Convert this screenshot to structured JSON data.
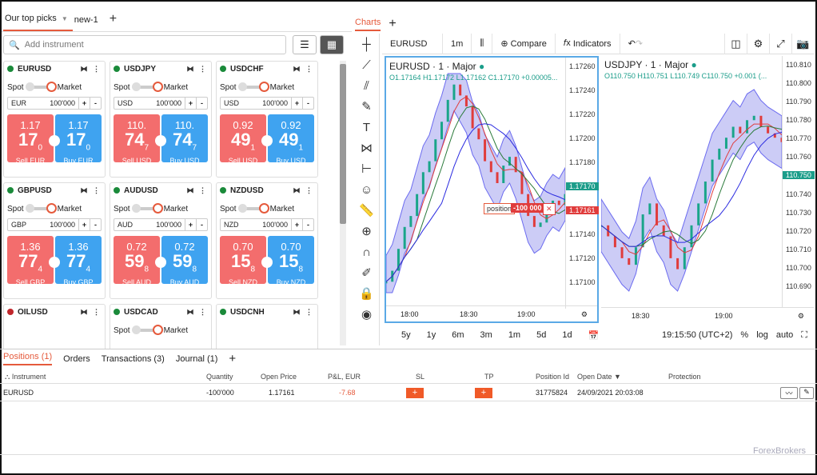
{
  "top_tabs": [
    {
      "label": "Our top picks"
    },
    {
      "label": "new-1"
    }
  ],
  "search": {
    "placeholder": "Add instrument"
  },
  "cards": [
    {
      "sym": "EURUSD",
      "cur": "EUR",
      "amt": "100'000",
      "sell_big": "1.17",
      "sell_main": "17",
      "sell_sub": "0",
      "buy_big": "1.17",
      "buy_main": "17",
      "buy_sub": "0",
      "sell_lbl": "Sell EUR",
      "buy_lbl": "Buy EUR"
    },
    {
      "sym": "USDJPY",
      "cur": "USD",
      "amt": "100'000",
      "sell_big": "110.",
      "sell_main": "74",
      "sell_sub": "7",
      "buy_big": "110.",
      "buy_main": "74",
      "buy_sub": "7",
      "sell_lbl": "Sell USD",
      "buy_lbl": "Buy USD"
    },
    {
      "sym": "USDCHF",
      "cur": "USD",
      "amt": "100'000",
      "sell_big": "0.92",
      "sell_main": "49",
      "sell_sub": "1",
      "buy_big": "0.92",
      "buy_main": "49",
      "buy_sub": "1",
      "sell_lbl": "Sell USD",
      "buy_lbl": "Buy USD"
    },
    {
      "sym": "GBPUSD",
      "cur": "GBP",
      "amt": "100'000",
      "sell_big": "1.36",
      "sell_main": "77",
      "sell_sub": "4",
      "buy_big": "1.36",
      "buy_main": "77",
      "buy_sub": "4",
      "sell_lbl": "Sell GBP",
      "buy_lbl": "Buy GBP"
    },
    {
      "sym": "AUDUSD",
      "cur": "AUD",
      "amt": "100'000",
      "sell_big": "0.72",
      "sell_main": "59",
      "sell_sub": "8",
      "buy_big": "0.72",
      "buy_main": "59",
      "buy_sub": "8",
      "sell_lbl": "Sell AUD",
      "buy_lbl": "Buy AUD"
    },
    {
      "sym": "NZDUSD",
      "cur": "NZD",
      "amt": "100'000",
      "sell_big": "0.70",
      "sell_main": "15",
      "sell_sub": "8",
      "buy_big": "0.70",
      "buy_main": "15",
      "buy_sub": "8",
      "sell_lbl": "Sell NZD",
      "buy_lbl": "Buy NZD"
    }
  ],
  "small_cards": [
    {
      "sym": "OILUSD"
    },
    {
      "sym": "USDCAD"
    },
    {
      "sym": "USDCNH"
    }
  ],
  "card_labels": {
    "spot": "Spot",
    "market": "Market"
  },
  "charts": {
    "tab": "Charts",
    "symbol": "EURUSD",
    "interval": "1m",
    "compare": "Compare",
    "indicators": "Indicators",
    "left": {
      "name": "EURUSD · 1 · Major",
      "ohlc": "O1.17164 H1.17172 L1.17162 C1.17170 +0.00005...",
      "axis": [
        "1.17260",
        "1.17240",
        "1.17220",
        "1.17200",
        "1.17180",
        "1.17170",
        "1.17161",
        "1.17140",
        "1.17120",
        "1.17100"
      ],
      "times": [
        "18:00",
        "18:30",
        "19:00"
      ],
      "position": "position",
      "pos_val": "-100 000"
    },
    "right": {
      "name": "USDJPY · 1 · Major",
      "ohlc": "O110.750 H110.751 L110.749 C110.750 +0.001 (...",
      "axis": [
        "110.810",
        "110.800",
        "110.790",
        "110.780",
        "110.770",
        "110.760",
        "110.750",
        "110.740",
        "110.730",
        "110.720",
        "110.710",
        "110.700",
        "110.690"
      ],
      "times": [
        "18:30",
        "19:00"
      ]
    },
    "ranges": [
      "5y",
      "1y",
      "6m",
      "3m",
      "1m",
      "5d",
      "1d"
    ],
    "clock": "19:15:50 (UTC+2)",
    "pct": "%",
    "log": "log",
    "auto": "auto"
  },
  "bottom_tabs": [
    {
      "label": "Positions (1)"
    },
    {
      "label": "Orders"
    },
    {
      "label": "Transactions (3)"
    },
    {
      "label": "Journal (1)"
    }
  ],
  "table": {
    "headers": [
      "Instrument",
      "Quantity",
      "Open Price",
      "P&L, EUR",
      "SL",
      "TP",
      "Position Id",
      "Open Date",
      "Protection"
    ],
    "row": {
      "instrument": "EURUSD",
      "quantity": "-100'000",
      "open_price": "1.17161",
      "pnl": "-7.68",
      "sl": "+",
      "tp": "+",
      "pos_id": "31775824",
      "open_date": "24/09/2021 20:03:08"
    }
  },
  "watermark": "ForexBrokers",
  "colors": {
    "accent": "#e55a3c",
    "sell": "#f36d6d",
    "buy": "#3fa3f0",
    "pnl_negative": "#e55a3c"
  }
}
